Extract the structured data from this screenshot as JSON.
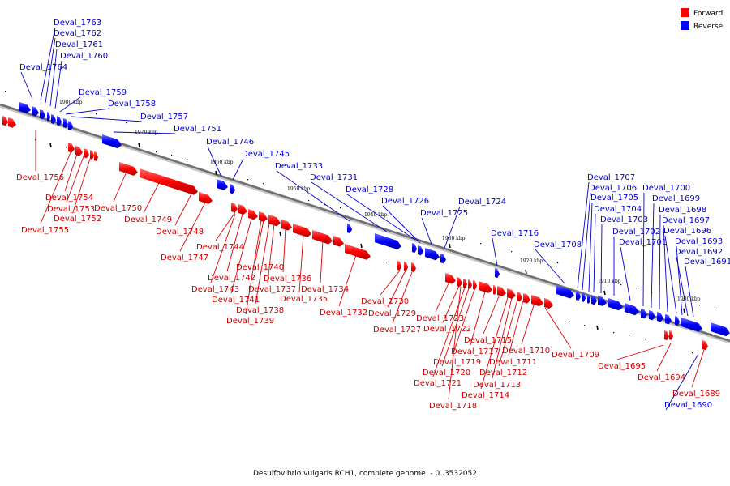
{
  "caption": "Desulfovibrio vulgaris RCH1, complete genome. - 0..3532052",
  "legend": [
    {
      "label": "Forward",
      "color": "#ff0000"
    },
    {
      "label": "Reverse",
      "color": "#0000ff"
    }
  ],
  "colors": {
    "forward": "#ff0000",
    "reverse": "#0000ff",
    "forward_leader": "#dd0000",
    "reverse_leader": "#0000cc",
    "axis": "#808080"
  },
  "ticks": [
    "1980 kbp",
    "1970 kbp",
    "1960 kbp",
    "1950 kbp",
    "1940 kbp",
    "1930 kbp",
    "1920 kbp",
    "1910 kbp",
    "1900 kbp"
  ],
  "reverse_genes": [
    "Deval_1764",
    "Deval_1763",
    "Deval_1762",
    "Deval_1761",
    "Deval_1760",
    "Deval_1759",
    "Deval_1758",
    "Deval_1757",
    "Deval_1751",
    "Deval_1746",
    "Deval_1745",
    "Deval_1733",
    "Deval_1731",
    "Deval_1728",
    "Deval_1726",
    "Deval_1725",
    "Deval_1724",
    "Deval_1716",
    "Deval_1708",
    "Deval_1707",
    "Deval_1706",
    "Deval_1705",
    "Deval_1704",
    "Deval_1703",
    "Deval_1702",
    "Deval_1701",
    "Deval_1700",
    "Deval_1699",
    "Deval_1698",
    "Deval_1697",
    "Deval_1696",
    "Deval_1693",
    "Deval_1692",
    "Deval_1691",
    "Deval_1690"
  ],
  "forward_genes": [
    "Deval_1756",
    "Deval_1754",
    "Deval_1753",
    "Deval_1752",
    "Deval_1755",
    "Deval_1750",
    "Deval_1749",
    "Deval_1748",
    "Deval_1747",
    "Deval_1744",
    "Deval_1742",
    "Deval_1743",
    "Deval_1741",
    "Deval_1740",
    "Deval_1737",
    "Deval_1738",
    "Deval_1739",
    "Deval_1736",
    "Deval_1735",
    "Deval_1734",
    "Deval_1732",
    "Deval_1730",
    "Deval_1729",
    "Deval_1727",
    "Deval_1723",
    "Deval_1722",
    "Deval_1715",
    "Deval_1717",
    "Deval_1719",
    "Deval_1720",
    "Deval_1721",
    "Deval_1718",
    "Deval_1710",
    "Deval_1711",
    "Deval_1712",
    "Deval_1713",
    "Deval_1714",
    "Deval_1709",
    "Deval_1695",
    "Deval_1694",
    "Deval_1689"
  ]
}
